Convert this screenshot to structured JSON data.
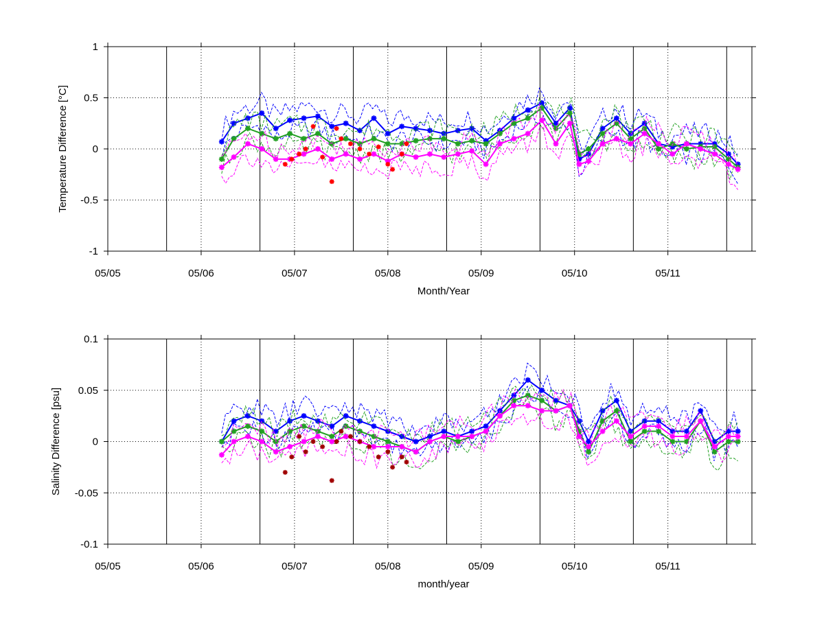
{
  "colors": {
    "blue": "#0000ff",
    "green": "#22a022",
    "magenta": "#ff00ff",
    "red": "#ff0000",
    "darkred": "#a00000",
    "axis": "#000000"
  },
  "chart_data": [
    {
      "type": "line",
      "ylabel": "Temperature Difference [°C]",
      "xlabel": "Month/Year",
      "x_tick_labels": [
        "05/05",
        "05/06",
        "05/07",
        "05/08",
        "05/09",
        "05/10",
        "05/11"
      ],
      "x_range_months": [
        0,
        6.9
      ],
      "ylim": [
        -1,
        1
      ],
      "y_ticks": [
        -1,
        -0.5,
        0,
        0.5,
        1
      ],
      "y_tick_labels": [
        "-1",
        "-0.5",
        "0",
        "0.5",
        "1"
      ],
      "grid": "dotted",
      "vertical_markers_months": [
        0.63,
        1.63,
        2.63,
        3.63,
        4.63,
        5.63,
        6.63
      ],
      "series": [
        {
          "color": "blue",
          "style": "marker-line",
          "x": [
            1.22,
            1.35,
            1.5,
            1.65,
            1.8,
            1.95,
            2.1,
            2.25,
            2.4,
            2.55,
            2.7,
            2.85,
            3.0,
            3.15,
            3.3,
            3.45,
            3.6,
            3.75,
            3.9,
            4.05,
            4.2,
            4.35,
            4.5,
            4.65,
            4.8,
            4.95,
            5.05,
            5.15,
            5.3,
            5.45,
            5.6,
            5.75,
            5.9,
            6.05,
            6.2,
            6.35,
            6.5,
            6.65,
            6.75
          ],
          "y": [
            0.07,
            0.25,
            0.3,
            0.35,
            0.2,
            0.28,
            0.3,
            0.32,
            0.22,
            0.25,
            0.18,
            0.3,
            0.15,
            0.22,
            0.2,
            0.18,
            0.15,
            0.18,
            0.2,
            0.08,
            0.18,
            0.3,
            0.38,
            0.45,
            0.25,
            0.4,
            -0.1,
            -0.05,
            0.2,
            0.3,
            0.15,
            0.25,
            0.05,
            0.02,
            0.05,
            0.05,
            0.05,
            -0.05,
            -0.15
          ]
        },
        {
          "color": "green",
          "style": "marker-line",
          "x": [
            1.22,
            1.35,
            1.5,
            1.65,
            1.8,
            1.95,
            2.1,
            2.25,
            2.4,
            2.55,
            2.7,
            2.85,
            3.0,
            3.15,
            3.3,
            3.45,
            3.6,
            3.75,
            3.9,
            4.05,
            4.2,
            4.35,
            4.5,
            4.65,
            4.8,
            4.95,
            5.05,
            5.15,
            5.3,
            5.45,
            5.6,
            5.75,
            5.9,
            6.05,
            6.2,
            6.35,
            6.5,
            6.65,
            6.75
          ],
          "y": [
            -0.1,
            0.1,
            0.2,
            0.15,
            0.1,
            0.15,
            0.1,
            0.15,
            0.05,
            0.1,
            0.05,
            0.1,
            0.05,
            0.05,
            0.08,
            0.1,
            0.1,
            0.05,
            0.08,
            0.05,
            0.15,
            0.25,
            0.3,
            0.4,
            0.2,
            0.35,
            -0.05,
            0.0,
            0.15,
            0.25,
            0.1,
            0.2,
            0.0,
            0.05,
            0.0,
            0.02,
            0.02,
            -0.1,
            -0.18
          ]
        },
        {
          "color": "magenta",
          "style": "marker-line",
          "x": [
            1.22,
            1.35,
            1.5,
            1.65,
            1.8,
            1.95,
            2.1,
            2.25,
            2.4,
            2.55,
            2.7,
            2.85,
            3.0,
            3.15,
            3.3,
            3.45,
            3.6,
            3.75,
            3.9,
            4.05,
            4.2,
            4.35,
            4.5,
            4.65,
            4.8,
            4.95,
            5.05,
            5.15,
            5.3,
            5.45,
            5.6,
            5.75,
            5.9,
            6.05,
            6.2,
            6.35,
            6.5,
            6.65,
            6.75
          ],
          "y": [
            -0.18,
            -0.08,
            0.05,
            0.0,
            -0.1,
            -0.1,
            -0.05,
            0.0,
            -0.1,
            -0.05,
            -0.1,
            -0.05,
            -0.12,
            -0.05,
            -0.08,
            -0.05,
            -0.08,
            -0.05,
            -0.02,
            -0.15,
            0.05,
            0.1,
            0.15,
            0.28,
            0.05,
            0.25,
            -0.15,
            -0.12,
            0.05,
            0.1,
            0.05,
            0.15,
            0.05,
            -0.05,
            0.05,
            0.0,
            -0.05,
            -0.15,
            -0.2
          ]
        },
        {
          "color": "red",
          "style": "markers",
          "x": [
            1.9,
            1.97,
            2.05,
            2.12,
            2.2,
            2.3,
            2.4,
            2.45,
            2.5,
            2.6,
            2.7,
            2.8,
            2.9,
            3.0,
            3.05,
            3.15,
            3.2
          ],
          "y": [
            -0.15,
            -0.1,
            -0.05,
            0.0,
            0.22,
            -0.08,
            -0.32,
            0.2,
            0.1,
            0.05,
            0.0,
            -0.05,
            0.02,
            -0.15,
            -0.2,
            -0.05,
            0.05
          ]
        }
      ]
    },
    {
      "type": "line",
      "ylabel": "Salinity Difference [psu]",
      "xlabel": "month/year",
      "x_tick_labels": [
        "05/05",
        "05/06",
        "05/07",
        "05/08",
        "05/09",
        "05/10",
        "05/11"
      ],
      "x_range_months": [
        0,
        6.9
      ],
      "ylim": [
        -0.1,
        0.1
      ],
      "y_ticks": [
        -0.1,
        -0.05,
        0,
        0.05,
        0.1
      ],
      "y_tick_labels": [
        "-0.1",
        "-0.05",
        "0",
        "0.05",
        "0.1"
      ],
      "grid": "dotted",
      "vertical_markers_months": [
        0.63,
        1.63,
        2.63,
        3.63,
        4.63,
        5.63,
        6.63
      ],
      "series": [
        {
          "color": "blue",
          "style": "marker-line",
          "x": [
            1.22,
            1.35,
            1.5,
            1.65,
            1.8,
            1.95,
            2.1,
            2.25,
            2.4,
            2.55,
            2.7,
            2.85,
            3.0,
            3.15,
            3.3,
            3.45,
            3.6,
            3.75,
            3.9,
            4.05,
            4.2,
            4.35,
            4.5,
            4.65,
            4.8,
            4.95,
            5.05,
            5.15,
            5.3,
            5.45,
            5.6,
            5.75,
            5.9,
            6.05,
            6.2,
            6.35,
            6.5,
            6.65,
            6.75
          ],
          "y": [
            0.0,
            0.02,
            0.025,
            0.02,
            0.01,
            0.02,
            0.025,
            0.02,
            0.015,
            0.025,
            0.02,
            0.015,
            0.01,
            0.005,
            0.0,
            0.005,
            0.01,
            0.005,
            0.01,
            0.015,
            0.03,
            0.045,
            0.06,
            0.05,
            0.04,
            0.035,
            0.02,
            0.0,
            0.03,
            0.04,
            0.01,
            0.02,
            0.02,
            0.01,
            0.01,
            0.03,
            0.0,
            0.01,
            0.01
          ]
        },
        {
          "color": "green",
          "style": "marker-line",
          "x": [
            1.22,
            1.35,
            1.5,
            1.65,
            1.8,
            1.95,
            2.1,
            2.25,
            2.4,
            2.55,
            2.7,
            2.85,
            3.0,
            3.15,
            3.3,
            3.45,
            3.6,
            3.75,
            3.9,
            4.05,
            4.2,
            4.35,
            4.5,
            4.65,
            4.8,
            4.95,
            5.05,
            5.15,
            5.3,
            5.45,
            5.6,
            5.75,
            5.9,
            6.05,
            6.2,
            6.35,
            6.5,
            6.65,
            6.75
          ],
          "y": [
            0.0,
            0.01,
            0.015,
            0.01,
            0.0,
            0.01,
            0.015,
            0.01,
            0.005,
            0.015,
            0.01,
            0.005,
            0.0,
            -0.005,
            -0.01,
            0.0,
            0.005,
            0.0,
            0.005,
            0.01,
            0.025,
            0.04,
            0.045,
            0.04,
            0.03,
            0.035,
            0.01,
            -0.01,
            0.02,
            0.03,
            0.0,
            0.01,
            0.01,
            0.0,
            0.0,
            0.02,
            -0.01,
            0.0,
            0.0
          ]
        },
        {
          "color": "magenta",
          "style": "marker-line",
          "x": [
            1.22,
            1.35,
            1.5,
            1.65,
            1.8,
            1.95,
            2.1,
            2.25,
            2.4,
            2.55,
            2.7,
            2.85,
            3.0,
            3.15,
            3.3,
            3.45,
            3.6,
            3.75,
            3.9,
            4.05,
            4.2,
            4.35,
            4.5,
            4.65,
            4.8,
            4.95,
            5.05,
            5.15,
            5.3,
            5.45,
            5.6,
            5.75,
            5.9,
            6.05,
            6.2,
            6.35,
            6.5,
            6.65,
            6.75
          ],
          "y": [
            -0.013,
            0.0,
            0.005,
            0.0,
            -0.01,
            -0.005,
            0.0,
            0.005,
            0.0,
            0.005,
            0.0,
            -0.005,
            -0.005,
            -0.005,
            -0.01,
            0.0,
            0.005,
            0.005,
            0.005,
            0.01,
            0.025,
            0.035,
            0.035,
            0.03,
            0.03,
            0.035,
            0.005,
            -0.005,
            0.01,
            0.02,
            0.005,
            0.015,
            0.015,
            0.005,
            0.005,
            0.02,
            -0.005,
            0.005,
            0.005
          ]
        },
        {
          "color": "darkred",
          "style": "markers",
          "x": [
            1.9,
            1.97,
            2.05,
            2.12,
            2.2,
            2.3,
            2.4,
            2.45,
            2.5,
            2.6,
            2.7,
            2.8,
            2.9,
            3.0,
            3.05,
            3.15,
            3.2
          ],
          "y": [
            -0.03,
            -0.015,
            0.005,
            -0.01,
            0.0,
            -0.005,
            -0.038,
            0.0,
            0.01,
            0.005,
            0.0,
            -0.005,
            -0.015,
            -0.01,
            -0.025,
            -0.015,
            -0.02
          ]
        }
      ]
    }
  ]
}
